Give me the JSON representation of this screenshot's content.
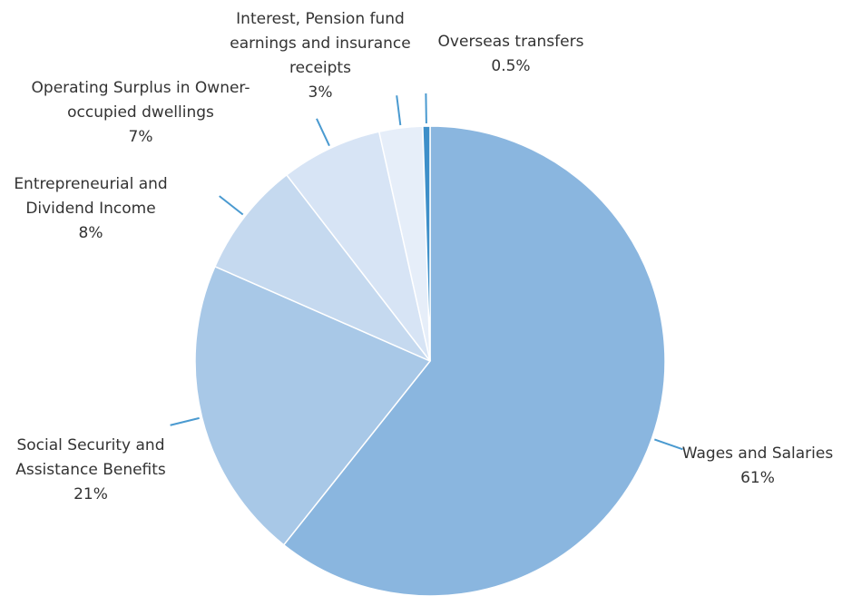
{
  "chart_data": {
    "type": "pie",
    "categories": [
      "Wages and Salaries",
      "Social Security and Assistance Benefits",
      "Entrepreneurial and Dividend Income",
      "Operating Surplus in Owner-occupied dwellings",
      "Interest, Pension fund earnings and insurance receipts",
      "Overseas transfers"
    ],
    "values": [
      61,
      21,
      8,
      7,
      3,
      0.5
    ],
    "value_labels": [
      "61%",
      "21%",
      "8%",
      "7%",
      "3%",
      "0.5%"
    ],
    "colors": [
      "#8ab6df",
      "#a8c8e7",
      "#c5d9ef",
      "#d7e4f5",
      "#e6eef9",
      "#3d8fc9"
    ]
  }
}
